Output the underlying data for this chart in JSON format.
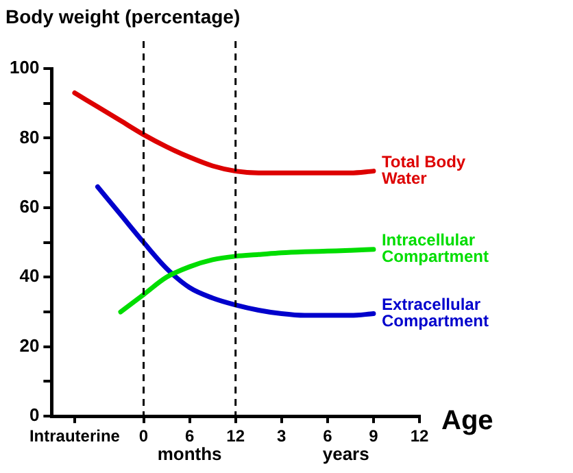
{
  "chart_data": {
    "type": "line",
    "ylabel": "Body weight (percentage)",
    "xlabel": "Age",
    "annotations": [
      "months",
      "years"
    ],
    "categories": [
      null,
      "Intrauterine",
      null,
      null,
      "0",
      null,
      "6",
      null,
      "12",
      null,
      "3",
      null,
      "6",
      null,
      "9",
      null,
      "12"
    ],
    "ylim": [
      0,
      100
    ],
    "yticks": [
      0,
      {
        "value": 10,
        "label": null
      },
      20,
      {
        "value": 30,
        "label": null
      },
      40,
      {
        "value": 50,
        "label": null
      },
      60,
      {
        "value": 70,
        "label": null
      },
      80,
      {
        "value": 90,
        "label": null
      },
      100
    ],
    "grid": false,
    "legend": false,
    "marker": "none",
    "line_style": "solid",
    "ref_lines": [
      {
        "axis": "x",
        "value": "0",
        "color": "#000000",
        "line_style": "dashed"
      },
      {
        "axis": "x",
        "value": "12",
        "color": "#000000",
        "line_style": "dashed"
      }
    ],
    "series": [
      {
        "name": "Total Body Water",
        "color": "#dd0000",
        "values": [
          null,
          93,
          89,
          85,
          81,
          77.5,
          74.5,
          72,
          70.5,
          70,
          70,
          70,
          70,
          70,
          70.5,
          null,
          null
        ]
      },
      {
        "name": "Intracellular Compartment",
        "color": "#00dd00",
        "values": [
          null,
          null,
          null,
          30,
          35,
          40,
          43,
          45,
          46,
          46.5,
          47,
          47.3,
          47.5,
          47.7,
          48,
          null,
          null
        ]
      },
      {
        "name": "Extracellular Compartment",
        "color": "#0000cc",
        "values": [
          null,
          null,
          66,
          58,
          50,
          42.5,
          37,
          34,
          32,
          30.5,
          29.5,
          29,
          29,
          29,
          29.5,
          null,
          null
        ]
      }
    ]
  }
}
